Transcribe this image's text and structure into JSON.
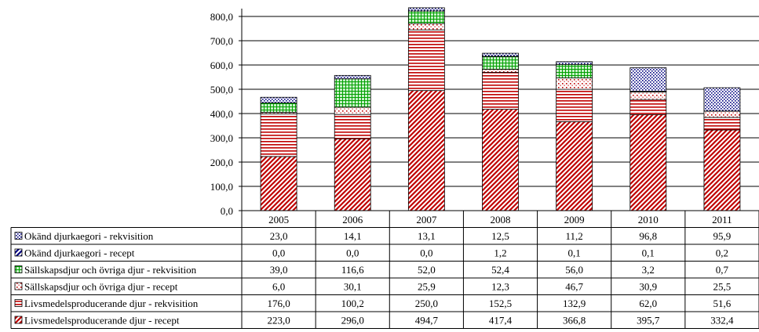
{
  "chart_data": {
    "type": "bar",
    "stacked": true,
    "categories": [
      "2005",
      "2006",
      "2007",
      "2008",
      "2009",
      "2010",
      "2011"
    ],
    "ylim": [
      0,
      800
    ],
    "ytick_step": 100,
    "ytick_labels": [
      "0,0",
      "100,0",
      "200,0",
      "300,0",
      "400,0",
      "500,0",
      "600,0",
      "700,0",
      "800,0"
    ],
    "grid": true,
    "legend_placement": "data-table-left",
    "series": [
      {
        "name": "Livsmedelsproducerande djur - recept",
        "color": "#c00000",
        "pattern": "diagonal",
        "values": [
          223.0,
          296.0,
          494.7,
          417.4,
          366.8,
          395.7,
          332.4
        ],
        "labels": [
          "223,0",
          "296,0",
          "494,7",
          "417,4",
          "366,8",
          "395,7",
          "332,4"
        ]
      },
      {
        "name": "Livsmedelsproducerande djur - rekvisition",
        "color": "#c00000",
        "pattern": "horizontal",
        "values": [
          176.0,
          100.2,
          250.0,
          152.5,
          132.9,
          62.0,
          51.6
        ],
        "labels": [
          "176,0",
          "100,2",
          "250,0",
          "152,5",
          "132,9",
          "62,0",
          "51,6"
        ]
      },
      {
        "name": "Sällskapsdjur och övriga djur - recept",
        "color": "#c00000",
        "pattern": "dots",
        "values": [
          6.0,
          30.1,
          25.9,
          12.3,
          46.7,
          30.9,
          25.5
        ],
        "labels": [
          "6,0",
          "30,1",
          "25,9",
          "12,3",
          "46,7",
          "30,9",
          "25,5"
        ]
      },
      {
        "name": "Sällskapsdjur och övriga djur - rekvisition",
        "color": "#00a000",
        "pattern": "grid",
        "values": [
          39.0,
          116.6,
          52.0,
          52.4,
          56.0,
          3.2,
          0.7
        ],
        "labels": [
          "39,0",
          "116,6",
          "52,0",
          "52,4",
          "56,0",
          "3,2",
          "0,7"
        ]
      },
      {
        "name": "Okänd djurkaegori - recept",
        "color": "#000080",
        "pattern": "diagonal",
        "values": [
          0.0,
          0.0,
          0.0,
          1.2,
          0.1,
          0.1,
          0.2
        ],
        "labels": [
          "0,0",
          "0,0",
          "0,0",
          "1,2",
          "0,1",
          "0,1",
          "0,2"
        ]
      },
      {
        "name": "Okänd djurkaegori - rekvisition",
        "color": "#000080",
        "pattern": "dense-dots",
        "values": [
          23.0,
          14.1,
          13.1,
          12.5,
          11.2,
          96.8,
          95.9
        ],
        "labels": [
          "23,0",
          "14,1",
          "13,1",
          "12,5",
          "11,2",
          "96,8",
          "95,9"
        ]
      }
    ],
    "table_row_order": [
      5,
      4,
      3,
      2,
      1,
      0
    ]
  }
}
